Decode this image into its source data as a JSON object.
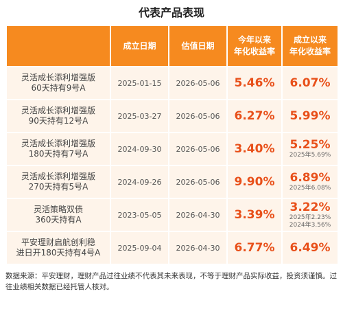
{
  "header": {
    "title": "代表产品表现"
  },
  "table": {
    "columns": [
      [
        "成立日期"
      ],
      [
        "估值日期"
      ],
      [
        "今年以来",
        "年化收益率"
      ],
      [
        "成立以来",
        "年化收益率"
      ]
    ],
    "rows": [
      {
        "name": [
          "灵活成长添利增强版",
          "60天持有9号A"
        ],
        "start": "2025-01-15",
        "valuation": "2026-05-06",
        "ytd": "5.46%",
        "since": "6.07%",
        "notes": []
      },
      {
        "name": [
          "灵活成长添利增强版",
          "90天持有12号A"
        ],
        "start": "2025-03-27",
        "valuation": "2026-05-06",
        "ytd": "6.27%",
        "since": "5.99%",
        "notes": []
      },
      {
        "name": [
          "灵活成长添利增强版",
          "180天持有7号A"
        ],
        "start": "2024-09-30",
        "valuation": "2026-05-06",
        "ytd": "3.40%",
        "since": "5.25%",
        "notes": [
          "2025年5.69%"
        ]
      },
      {
        "name": [
          "灵活成长添利增强版",
          "270天持有5号A"
        ],
        "start": "2024-09-26",
        "valuation": "2026-05-06",
        "ytd": "9.90%",
        "since": "6.89%",
        "notes": [
          "2025年6.08%"
        ]
      },
      {
        "name": [
          "灵活策略双债",
          "360天持有A"
        ],
        "start": "2023-05-05",
        "valuation": "2026-04-30",
        "ytd": "3.39%",
        "since": "3.22%",
        "notes": [
          "2025年2.23%",
          "2024年3.56%"
        ]
      },
      {
        "name": [
          "平安理财启航创利稳",
          "进日开180天持有4号A"
        ],
        "start": "2025-09-04",
        "valuation": "2026-04-30",
        "ytd": "6.77%",
        "since": "6.49%",
        "notes": []
      }
    ]
  },
  "footer": {
    "text": "数据来源：平安理财，理财产品过往业绩不代表其未来表现，不等于理财产品实际收益，投资须谨慎。过往业绩相关数据已经托管人核对。"
  }
}
